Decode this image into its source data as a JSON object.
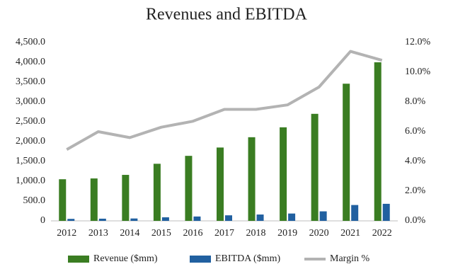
{
  "chart_data": {
    "type": "bar",
    "title": "Revenues and EBITDA",
    "categories": [
      "2012",
      "2013",
      "2014",
      "2015",
      "2016",
      "2017",
      "2018",
      "2019",
      "2020",
      "2021",
      "2022"
    ],
    "series": [
      {
        "name": "Revenue ($mm)",
        "color": "#3a7d22",
        "values": [
          1050,
          1070,
          1160,
          1440,
          1640,
          1850,
          2110,
          2360,
          2700,
          3460,
          4000
        ]
      },
      {
        "name": "EBITDA ($mm)",
        "color": "#2160a0",
        "values": [
          50,
          55,
          60,
          90,
          110,
          140,
          160,
          185,
          240,
          400,
          430
        ]
      },
      {
        "name": "Margin %",
        "color": "#b3b3b3",
        "type": "line",
        "axis": "y2",
        "values": [
          4.8,
          6.0,
          5.6,
          6.3,
          6.7,
          7.5,
          7.5,
          7.8,
          9.0,
          11.4,
          10.8
        ]
      }
    ],
    "ylim": [
      0,
      4500
    ],
    "yticks": [
      {
        "value": 0,
        "label": "0"
      },
      {
        "value": 500,
        "label": "500.0"
      },
      {
        "value": 1000,
        "label": "1,000.0"
      },
      {
        "value": 1500,
        "label": "1,500.0"
      },
      {
        "value": 2000,
        "label": "2,000.0"
      },
      {
        "value": 2500,
        "label": "2,500.0"
      },
      {
        "value": 3000,
        "label": "3,000.0"
      },
      {
        "value": 3500,
        "label": "3,500.0"
      },
      {
        "value": 4000,
        "label": "4,000.0"
      },
      {
        "value": 4500,
        "label": "4,500.0"
      }
    ],
    "y2lim": [
      0,
      12
    ],
    "y2ticks": [
      {
        "value": 0,
        "label": "0.0%"
      },
      {
        "value": 2,
        "label": "2.0%"
      },
      {
        "value": 4,
        "label": "4.0%"
      },
      {
        "value": 6,
        "label": "6.0%"
      },
      {
        "value": 8,
        "label": "8.0%"
      },
      {
        "value": 10,
        "label": "10.0%"
      },
      {
        "value": 12,
        "label": "12.0%"
      }
    ],
    "grid": false,
    "legend": "bottom"
  }
}
